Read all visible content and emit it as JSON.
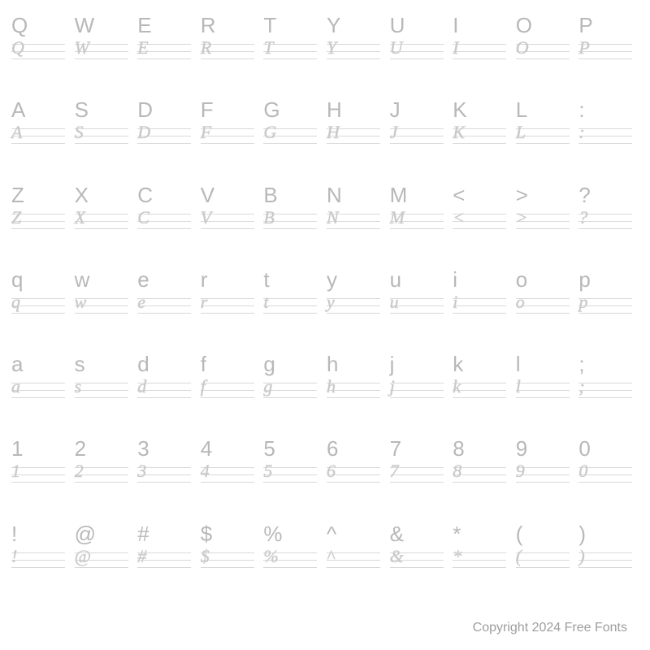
{
  "grid": {
    "columns": 10,
    "rows": 7,
    "cells": [
      {
        "ref": "Q",
        "trace": "Q"
      },
      {
        "ref": "W",
        "trace": "W"
      },
      {
        "ref": "E",
        "trace": "E"
      },
      {
        "ref": "R",
        "trace": "R"
      },
      {
        "ref": "T",
        "trace": "T"
      },
      {
        "ref": "Y",
        "trace": "Y"
      },
      {
        "ref": "U",
        "trace": "U"
      },
      {
        "ref": "I",
        "trace": "I"
      },
      {
        "ref": "O",
        "trace": "O"
      },
      {
        "ref": "P",
        "trace": "P"
      },
      {
        "ref": "A",
        "trace": "A"
      },
      {
        "ref": "S",
        "trace": "S"
      },
      {
        "ref": "D",
        "trace": "D"
      },
      {
        "ref": "F",
        "trace": "F"
      },
      {
        "ref": "G",
        "trace": "G"
      },
      {
        "ref": "H",
        "trace": "H"
      },
      {
        "ref": "J",
        "trace": "J"
      },
      {
        "ref": "K",
        "trace": "K"
      },
      {
        "ref": "L",
        "trace": "L"
      },
      {
        "ref": ":",
        "trace": ":"
      },
      {
        "ref": "Z",
        "trace": "Z"
      },
      {
        "ref": "X",
        "trace": "X"
      },
      {
        "ref": "C",
        "trace": "C"
      },
      {
        "ref": "V",
        "trace": "V"
      },
      {
        "ref": "B",
        "trace": "B"
      },
      {
        "ref": "N",
        "trace": "N"
      },
      {
        "ref": "M",
        "trace": "M"
      },
      {
        "ref": "<",
        "trace": "<"
      },
      {
        "ref": ">",
        "trace": ">"
      },
      {
        "ref": "?",
        "trace": "?"
      },
      {
        "ref": "q",
        "trace": "q"
      },
      {
        "ref": "w",
        "trace": "w"
      },
      {
        "ref": "e",
        "trace": "e"
      },
      {
        "ref": "r",
        "trace": "r"
      },
      {
        "ref": "t",
        "trace": "t"
      },
      {
        "ref": "y",
        "trace": "y"
      },
      {
        "ref": "u",
        "trace": "u"
      },
      {
        "ref": "i",
        "trace": "i"
      },
      {
        "ref": "o",
        "trace": "o"
      },
      {
        "ref": "p",
        "trace": "p"
      },
      {
        "ref": "a",
        "trace": "a"
      },
      {
        "ref": "s",
        "trace": "s"
      },
      {
        "ref": "d",
        "trace": "d"
      },
      {
        "ref": "f",
        "trace": "f"
      },
      {
        "ref": "g",
        "trace": "g"
      },
      {
        "ref": "h",
        "trace": "h"
      },
      {
        "ref": "j",
        "trace": "j"
      },
      {
        "ref": "k",
        "trace": "k"
      },
      {
        "ref": "l",
        "trace": "l"
      },
      {
        "ref": ";",
        "trace": ";"
      },
      {
        "ref": "1",
        "trace": "1"
      },
      {
        "ref": "2",
        "trace": "2"
      },
      {
        "ref": "3",
        "trace": "3"
      },
      {
        "ref": "4",
        "trace": "4"
      },
      {
        "ref": "5",
        "trace": "5"
      },
      {
        "ref": "6",
        "trace": "6"
      },
      {
        "ref": "7",
        "trace": "7"
      },
      {
        "ref": "8",
        "trace": "8"
      },
      {
        "ref": "9",
        "trace": "9"
      },
      {
        "ref": "0",
        "trace": "0"
      },
      {
        "ref": "!",
        "trace": "!"
      },
      {
        "ref": "@",
        "trace": "@"
      },
      {
        "ref": "#",
        "trace": "#"
      },
      {
        "ref": "$",
        "trace": "$"
      },
      {
        "ref": "%",
        "trace": "%"
      },
      {
        "ref": "^",
        "trace": "^"
      },
      {
        "ref": "&",
        "trace": "&"
      },
      {
        "ref": "*",
        "trace": "*"
      },
      {
        "ref": "(",
        "trace": "("
      },
      {
        "ref": ")",
        "trace": ")"
      }
    ]
  },
  "colors": {
    "background": "#ffffff",
    "ref_char": "#b8b8b8",
    "trace_char": "#c8c8c8",
    "guide_line": "#d8d8d8",
    "footer": "#9e9e9e"
  },
  "typography": {
    "ref_fontsize": 26,
    "trace_fontsize": 22,
    "footer_fontsize": 16
  },
  "footer": {
    "text": "Copyright 2024 Free Fonts"
  }
}
